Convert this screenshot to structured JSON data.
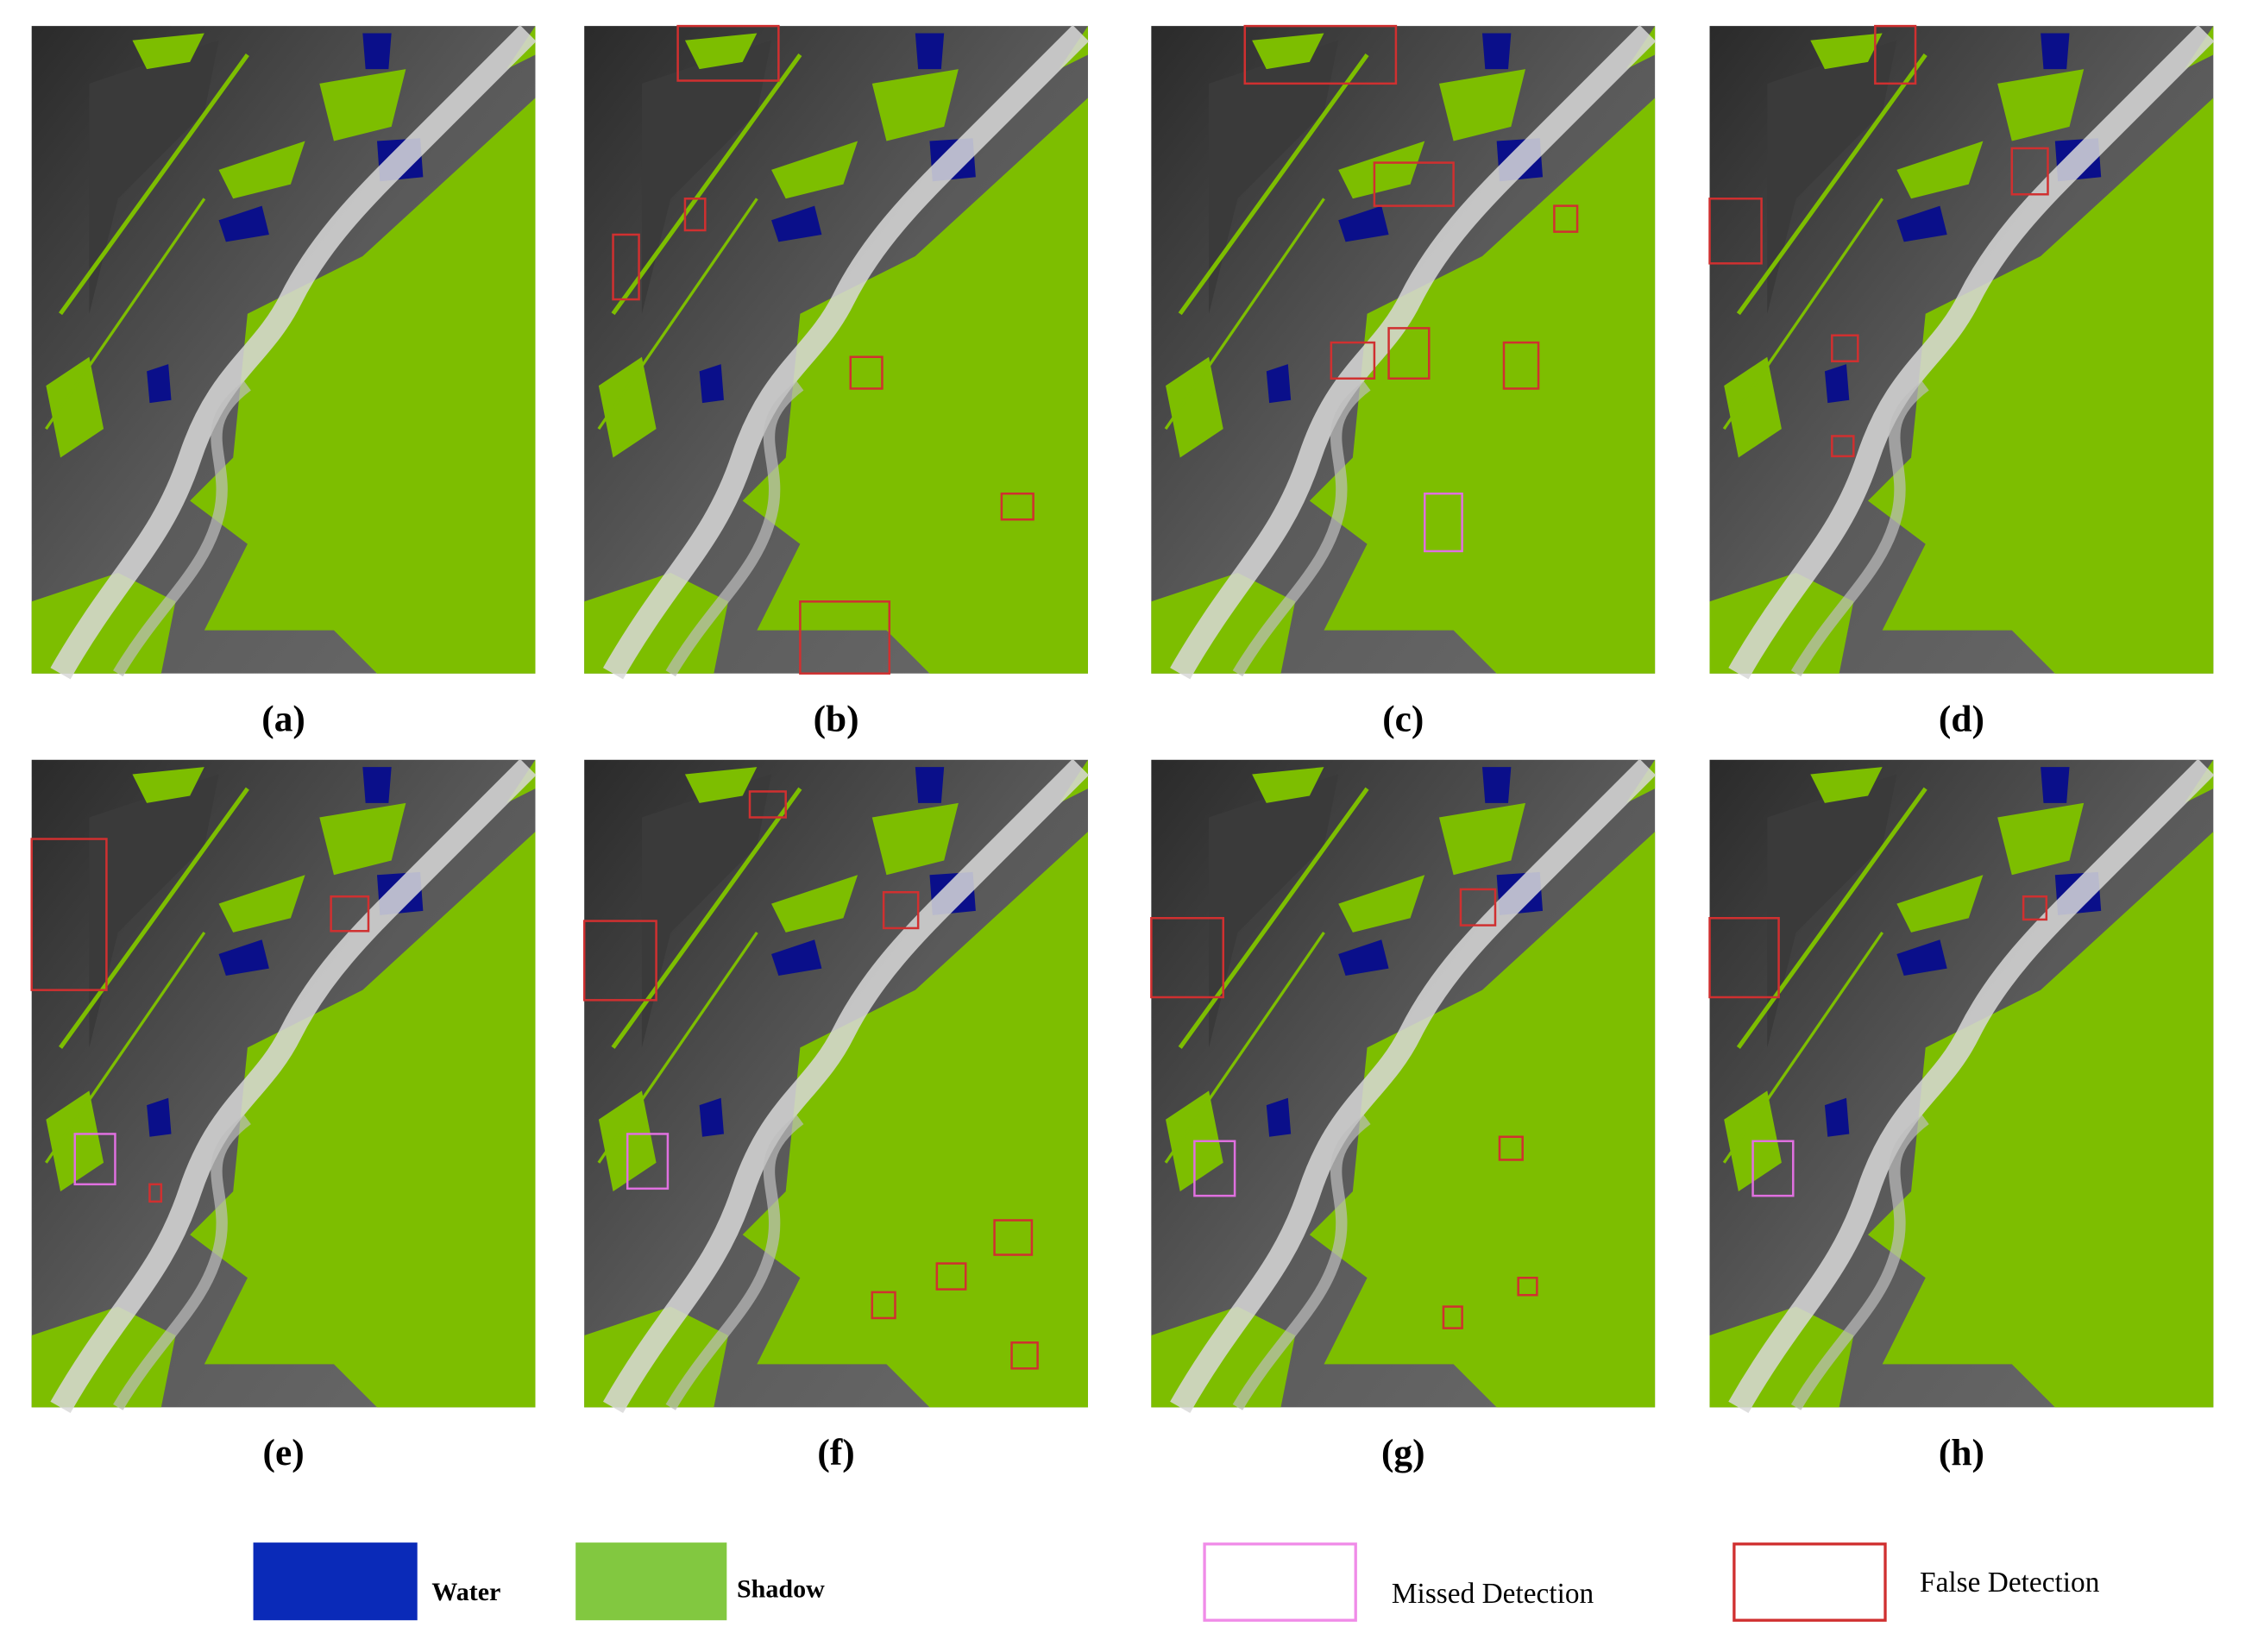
{
  "panels": [
    {
      "label": "(a)"
    },
    {
      "label": "(b)"
    },
    {
      "label": "(c)"
    },
    {
      "label": "(d)"
    },
    {
      "label": "(e)"
    },
    {
      "label": "(f)"
    },
    {
      "label": "(g)"
    },
    {
      "label": "(h)"
    }
  ],
  "legend": [
    {
      "label": "Water"
    },
    {
      "label": "Shadow"
    },
    {
      "label": "Missed Detection"
    },
    {
      "label": "False Detection"
    }
  ]
}
